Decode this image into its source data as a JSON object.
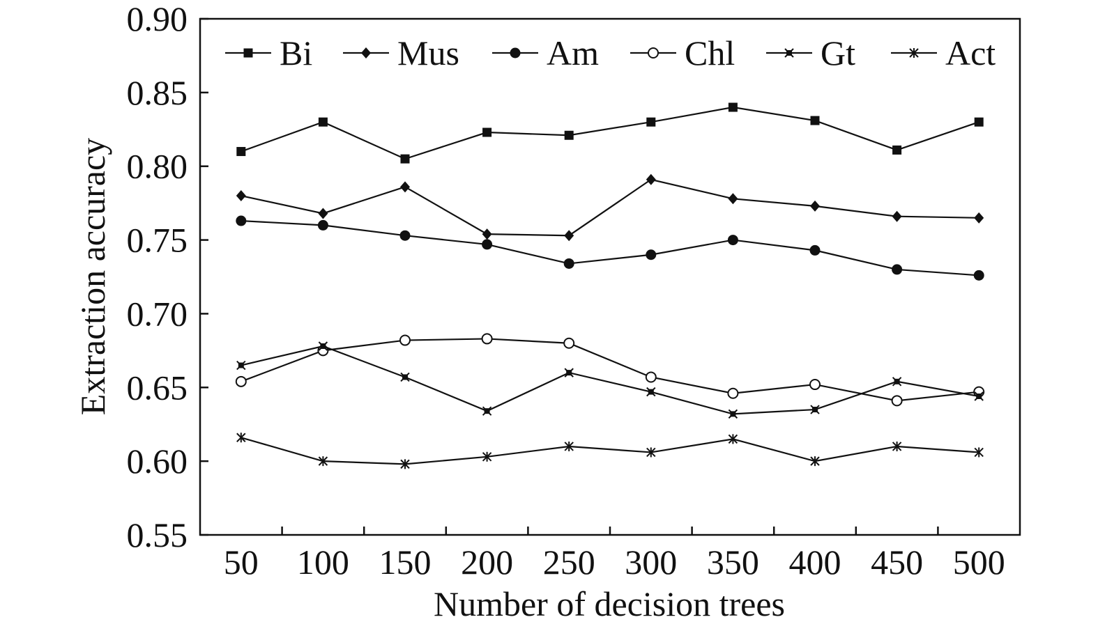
{
  "chart_data": {
    "type": "line",
    "title": "",
    "xlabel": "Number of decision trees",
    "ylabel": "Extraction accuracy",
    "categories": [
      "50",
      "100",
      "150",
      "200",
      "250",
      "300",
      "350",
      "400",
      "450",
      "500"
    ],
    "ylim": [
      0.55,
      0.9
    ],
    "yticks": [
      "0.55",
      "0.60",
      "0.65",
      "0.70",
      "0.75",
      "0.80",
      "0.85",
      "0.90"
    ],
    "grid": false,
    "legend_position": "top",
    "series": [
      {
        "name": "Bi",
        "marker": "square",
        "values": [
          0.81,
          0.83,
          0.805,
          0.823,
          0.821,
          0.83,
          0.84,
          0.831,
          0.811,
          0.83
        ]
      },
      {
        "name": "Mus",
        "marker": "diamond",
        "values": [
          0.78,
          0.768,
          0.786,
          0.754,
          0.753,
          0.791,
          0.778,
          0.773,
          0.766,
          0.765
        ]
      },
      {
        "name": "Am",
        "marker": "circle",
        "values": [
          0.763,
          0.76,
          0.753,
          0.747,
          0.734,
          0.74,
          0.75,
          0.743,
          0.73,
          0.726
        ]
      },
      {
        "name": "Chl",
        "marker": "open-circle",
        "values": [
          0.654,
          0.675,
          0.682,
          0.683,
          0.68,
          0.657,
          0.646,
          0.652,
          0.641,
          0.647
        ]
      },
      {
        "name": "Gt",
        "marker": "x-square",
        "values": [
          0.665,
          0.678,
          0.657,
          0.634,
          0.66,
          0.647,
          0.632,
          0.635,
          0.654,
          0.644
        ]
      },
      {
        "name": "Act",
        "marker": "asterisk",
        "values": [
          0.616,
          0.6,
          0.598,
          0.603,
          0.61,
          0.606,
          0.615,
          0.6,
          0.61,
          0.606
        ]
      }
    ]
  }
}
